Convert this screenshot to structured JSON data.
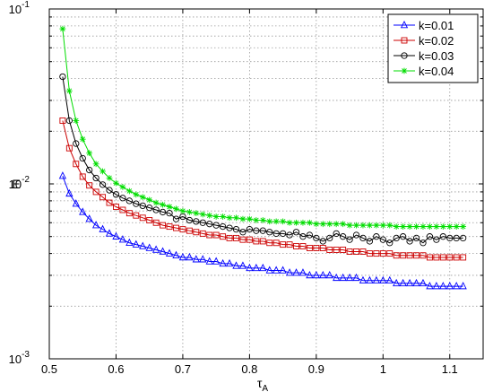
{
  "chart_data": {
    "type": "line",
    "title": "",
    "xlabel": "τ",
    "xlabel_sub": "A",
    "ylabel": "E",
    "xlim": [
      0.5,
      1.15
    ],
    "ylim": [
      0.001,
      0.1
    ],
    "y_scale": "log",
    "grid": true,
    "legend_position": "top-right",
    "x_ticks": [
      0.5,
      0.6,
      0.7,
      0.8,
      0.9,
      1.0,
      1.1
    ],
    "x_tick_labels": [
      "0.5",
      "0.6",
      "0.7",
      "0.8",
      "0.9",
      "1",
      "1.1"
    ],
    "y_ticks": [
      {
        "value": 0.001,
        "base": "10",
        "exp": "-3"
      },
      {
        "value": 0.01,
        "base": "10",
        "exp": "-2"
      },
      {
        "value": 0.1,
        "base": "10",
        "exp": "-1"
      }
    ],
    "x": [
      0.52,
      0.53,
      0.54,
      0.55,
      0.56,
      0.57,
      0.58,
      0.59,
      0.6,
      0.61,
      0.62,
      0.63,
      0.64,
      0.65,
      0.66,
      0.67,
      0.68,
      0.69,
      0.7,
      0.71,
      0.72,
      0.73,
      0.74,
      0.75,
      0.76,
      0.77,
      0.78,
      0.79,
      0.8,
      0.81,
      0.82,
      0.83,
      0.84,
      0.85,
      0.86,
      0.87,
      0.88,
      0.89,
      0.9,
      0.91,
      0.92,
      0.93,
      0.94,
      0.95,
      0.96,
      0.97,
      0.98,
      0.99,
      1.0,
      1.01,
      1.02,
      1.03,
      1.04,
      1.05,
      1.06,
      1.07,
      1.08,
      1.09,
      1.1,
      1.11,
      1.12
    ],
    "series": [
      {
        "name": "k=0.01",
        "color": "#0000ff",
        "marker": "triangle",
        "values": [
          0.0111,
          0.0088,
          0.0077,
          0.0069,
          0.0063,
          0.0058,
          0.0055,
          0.0052,
          0.005,
          0.0048,
          0.0046,
          0.0045,
          0.0044,
          0.0043,
          0.0042,
          0.0041,
          0.004,
          0.0039,
          0.0038,
          0.0038,
          0.0037,
          0.0037,
          0.0036,
          0.0036,
          0.0035,
          0.0035,
          0.0034,
          0.0034,
          0.0033,
          0.0033,
          0.0033,
          0.0032,
          0.0032,
          0.0032,
          0.0031,
          0.0031,
          0.0031,
          0.003,
          0.003,
          0.003,
          0.003,
          0.0029,
          0.0029,
          0.0029,
          0.0029,
          0.0028,
          0.0028,
          0.0028,
          0.0028,
          0.0028,
          0.0027,
          0.0027,
          0.0027,
          0.0027,
          0.0027,
          0.0026,
          0.0026,
          0.0026,
          0.0026,
          0.0026,
          0.0026
        ]
      },
      {
        "name": "k=0.02",
        "color": "#cc0000",
        "marker": "square",
        "values": [
          0.023,
          0.016,
          0.013,
          0.011,
          0.0098,
          0.009,
          0.0084,
          0.0078,
          0.0074,
          0.0071,
          0.0068,
          0.0066,
          0.0064,
          0.0062,
          0.006,
          0.0058,
          0.0057,
          0.0056,
          0.0055,
          0.0054,
          0.0053,
          0.0052,
          0.0051,
          0.0051,
          0.005,
          0.0049,
          0.0049,
          0.0048,
          0.0048,
          0.0047,
          0.0047,
          0.0046,
          0.0046,
          0.0045,
          0.0045,
          0.0044,
          0.0044,
          0.0043,
          0.0043,
          0.0043,
          0.0042,
          0.0042,
          0.0042,
          0.0041,
          0.0041,
          0.0041,
          0.004,
          0.004,
          0.004,
          0.004,
          0.0039,
          0.0039,
          0.0039,
          0.0039,
          0.0039,
          0.0038,
          0.0038,
          0.0038,
          0.0038,
          0.0038,
          0.0038
        ]
      },
      {
        "name": "k=0.03",
        "color": "#000000",
        "marker": "circle",
        "values": [
          0.041,
          0.023,
          0.017,
          0.014,
          0.012,
          0.0108,
          0.0099,
          0.0092,
          0.0087,
          0.0083,
          0.008,
          0.0077,
          0.0075,
          0.0073,
          0.0071,
          0.0069,
          0.0068,
          0.0063,
          0.0065,
          0.0062,
          0.0061,
          0.006,
          0.0059,
          0.0058,
          0.0057,
          0.0056,
          0.0055,
          0.0053,
          0.0055,
          0.0054,
          0.0054,
          0.0053,
          0.0052,
          0.0052,
          0.0051,
          0.0053,
          0.005,
          0.0051,
          0.0049,
          0.0047,
          0.0049,
          0.0052,
          0.005,
          0.0048,
          0.0051,
          0.0049,
          0.0047,
          0.005,
          0.0048,
          0.0046,
          0.0049,
          0.005,
          0.0047,
          0.0049,
          0.0046,
          0.005,
          0.0048,
          0.005,
          0.0049,
          0.0049,
          0.0049
        ]
      },
      {
        "name": "k=0.04",
        "color": "#00dd00",
        "marker": "star",
        "values": [
          0.077,
          0.034,
          0.023,
          0.018,
          0.015,
          0.013,
          0.0118,
          0.0108,
          0.0101,
          0.0096,
          0.0091,
          0.0087,
          0.0084,
          0.0081,
          0.0078,
          0.0076,
          0.0074,
          0.0072,
          0.007,
          0.0069,
          0.0068,
          0.0067,
          0.0066,
          0.0065,
          0.0065,
          0.0064,
          0.0064,
          0.0063,
          0.0063,
          0.0062,
          0.0062,
          0.0061,
          0.0061,
          0.0061,
          0.006,
          0.006,
          0.006,
          0.006,
          0.0059,
          0.0059,
          0.0059,
          0.0059,
          0.0059,
          0.0058,
          0.0058,
          0.0058,
          0.0058,
          0.0058,
          0.0058,
          0.0058,
          0.0057,
          0.0057,
          0.0057,
          0.0057,
          0.0057,
          0.0057,
          0.0057,
          0.0057,
          0.0057,
          0.0057,
          0.0057
        ]
      }
    ]
  }
}
